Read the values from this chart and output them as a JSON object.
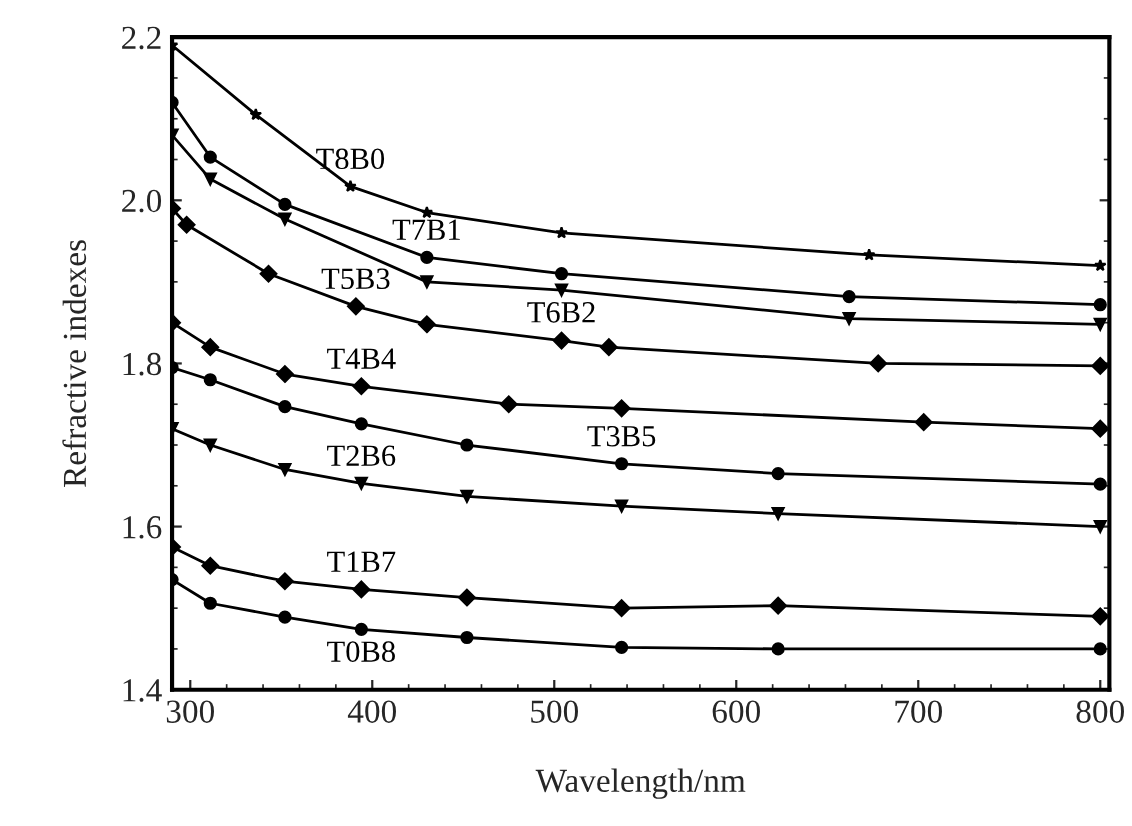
{
  "chart_data": {
    "type": "line",
    "xlabel": "Wavelength/nm",
    "ylabel": "Refractive indexes",
    "xlim": [
      290,
      805
    ],
    "ylim": [
      1.4,
      2.2
    ],
    "xticks": [
      300,
      400,
      500,
      600,
      700,
      800
    ],
    "yticks": [
      {
        "value": 1.4,
        "label": "1.4"
      },
      {
        "value": 1.6,
        "label": "1.6"
      },
      {
        "value": 1.8,
        "label": "1.8"
      },
      {
        "value": 2.0,
        "label": "2.0"
      },
      {
        "value": 2.2,
        "label": "2.2"
      }
    ],
    "grid": false,
    "legend": false,
    "line_style": "solid",
    "series": [
      {
        "name": "T8B0",
        "color": "#000000",
        "marker": "star",
        "x": [
          290,
          336,
          388,
          430,
          504,
          673,
          800
        ],
        "values": [
          2.19,
          2.105,
          2.017,
          1.985,
          1.96,
          1.933,
          1.92
        ]
      },
      {
        "name": "T7B1",
        "color": "#000000",
        "marker": "circle",
        "x": [
          290,
          311,
          352,
          430,
          504,
          662,
          800
        ],
        "values": [
          2.12,
          2.053,
          1.995,
          1.93,
          1.91,
          1.882,
          1.872
        ]
      },
      {
        "name": "T6B2",
        "color": "#000000",
        "marker": "triangle",
        "x": [
          290,
          311,
          352,
          430,
          504,
          662,
          800
        ],
        "values": [
          2.08,
          2.026,
          1.977,
          1.9,
          1.89,
          1.855,
          1.848
        ]
      },
      {
        "name": "T5B3",
        "color": "#000000",
        "marker": "diamond",
        "x": [
          290,
          298,
          343,
          391,
          430,
          504,
          530,
          678,
          800
        ],
        "values": [
          1.99,
          1.97,
          1.91,
          1.87,
          1.848,
          1.828,
          1.82,
          1.8,
          1.797
        ]
      },
      {
        "name": "T4B4",
        "color": "#000000",
        "marker": "diamond",
        "x": [
          290,
          311,
          352,
          394,
          475,
          537,
          703,
          800
        ],
        "values": [
          1.85,
          1.82,
          1.787,
          1.772,
          1.75,
          1.745,
          1.728,
          1.72
        ]
      },
      {
        "name": "T3B5",
        "color": "#000000",
        "marker": "circle",
        "x": [
          290,
          311,
          352,
          394,
          452,
          537,
          623,
          800
        ],
        "values": [
          1.795,
          1.78,
          1.747,
          1.726,
          1.7,
          1.677,
          1.665,
          1.652
        ]
      },
      {
        "name": "T2B6",
        "color": "#000000",
        "marker": "triangle",
        "x": [
          290,
          311,
          352,
          394,
          452,
          537,
          623,
          800
        ],
        "values": [
          1.72,
          1.7,
          1.67,
          1.653,
          1.637,
          1.625,
          1.616,
          1.6
        ]
      },
      {
        "name": "T1B7",
        "color": "#000000",
        "marker": "diamond",
        "x": [
          290,
          311,
          352,
          394,
          452,
          537,
          623,
          800
        ],
        "values": [
          1.575,
          1.552,
          1.533,
          1.523,
          1.513,
          1.5,
          1.503,
          1.49
        ]
      },
      {
        "name": "T0B8",
        "color": "#000000",
        "marker": "circle",
        "x": [
          290,
          311,
          352,
          394,
          452,
          537,
          623,
          800
        ],
        "values": [
          1.535,
          1.506,
          1.489,
          1.474,
          1.464,
          1.452,
          1.45,
          1.45
        ]
      }
    ]
  }
}
